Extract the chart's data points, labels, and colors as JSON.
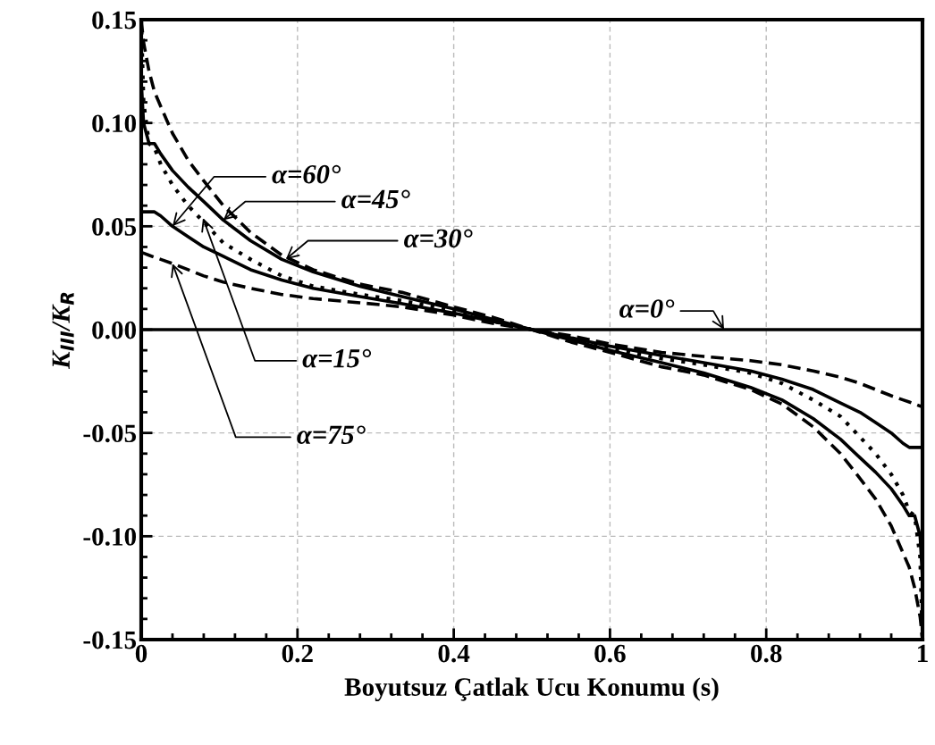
{
  "chart_data": {
    "type": "line",
    "xlabel": "Boyutsuz Çatlak Ucu Konumu (s)",
    "ylabel": "K$_{III}$/K$_{R}$",
    "x": [
      0,
      0.003,
      0.01,
      0.017,
      0.025,
      0.04,
      0.06,
      0.08,
      0.105,
      0.14,
      0.18,
      0.22,
      0.28,
      0.334,
      0.4,
      0.45,
      0.5,
      0.55,
      0.6,
      0.666,
      0.72,
      0.78,
      0.82,
      0.86,
      0.895,
      0.92,
      0.94,
      0.96,
      0.975,
      0.983,
      0.99,
      0.997,
      1
    ],
    "series": [
      {
        "color": "#000000",
        "line_style": "dashed",
        "values": [
          0.15,
          0.139,
          0.125,
          0.115,
          0.108,
          0.095,
          0.082,
          0.072,
          0.06,
          0.047,
          0.036,
          0.029,
          0.022,
          0.018,
          0.011,
          0.006,
          0,
          -0.006,
          -0.011,
          -0.018,
          -0.022,
          -0.029,
          -0.036,
          -0.047,
          -0.06,
          -0.072,
          -0.082,
          -0.095,
          -0.108,
          -0.115,
          -0.125,
          -0.139,
          -0.15
        ]
      },
      {
        "color": "#000000",
        "line_style": "solid",
        "values": [
          0.12,
          0.1,
          0.09,
          0.09,
          0.085,
          0.077,
          0.069,
          0.062,
          0.053,
          0.043,
          0.034,
          0.028,
          0.021,
          0.016,
          0.01,
          0.005,
          0,
          -0.005,
          -0.01,
          -0.016,
          -0.021,
          -0.028,
          -0.034,
          -0.043,
          -0.053,
          -0.062,
          -0.069,
          -0.077,
          -0.085,
          -0.09,
          -0.09,
          -0.1,
          -0.12
        ]
      },
      {
        "color": "#000000",
        "line_style": "dotted",
        "values": [
          0.15,
          0.11,
          0.09,
          0.088,
          0.08,
          0.07,
          0.06,
          0.052,
          0.042,
          0.034,
          0.026,
          0.021,
          0.017,
          0.014,
          0.009,
          0.004,
          0,
          -0.004,
          -0.009,
          -0.014,
          -0.017,
          -0.021,
          -0.026,
          -0.034,
          -0.042,
          -0.052,
          -0.06,
          -0.07,
          -0.08,
          -0.088,
          -0.09,
          -0.11,
          -0.15
        ]
      },
      {
        "color": "#000000",
        "line_style": "solid",
        "values": [
          0.057,
          0.057,
          0.057,
          0.057,
          0.055,
          0.05,
          0.045,
          0.04,
          0.0355,
          0.029,
          0.024,
          0.02,
          0.016,
          0.0125,
          0.008,
          0.004,
          0,
          -0.004,
          -0.008,
          -0.0125,
          -0.016,
          -0.02,
          -0.024,
          -0.029,
          -0.0355,
          -0.04,
          -0.045,
          -0.05,
          -0.055,
          -0.057,
          -0.057,
          -0.057,
          -0.057
        ]
      },
      {
        "color": "#000000",
        "line_style": "dashed",
        "values": [
          0.037,
          0.037,
          0.036,
          0.035,
          0.034,
          0.032,
          0.029,
          0.026,
          0.023,
          0.02,
          0.017,
          0.015,
          0.013,
          0.011,
          0.007,
          0.003,
          0,
          -0.003,
          -0.007,
          -0.011,
          -0.013,
          -0.015,
          -0.017,
          -0.02,
          -0.023,
          -0.026,
          -0.029,
          -0.032,
          -0.034,
          -0.035,
          -0.036,
          -0.037,
          -0.037
        ]
      },
      {
        "color": "#000000",
        "line_style": "solid",
        "values": [
          0,
          0,
          0,
          0,
          0,
          0,
          0,
          0,
          0,
          0,
          0,
          0,
          0,
          0,
          0,
          0,
          0,
          0,
          0,
          0,
          0,
          0,
          0,
          0,
          0,
          0,
          0,
          0,
          0,
          0,
          0,
          0,
          0
        ]
      }
    ],
    "annotations": [
      {
        "text": "α=60°",
        "x": 0.04,
        "y": 0.05
      },
      {
        "text": "α=45°",
        "x": 0.105,
        "y": 0.053
      },
      {
        "text": "α=30°",
        "x": 0.185,
        "y": 0.034
      },
      {
        "text": "α=15°",
        "x": 0.079,
        "y": 0.054
      },
      {
        "text": "α=75°",
        "x": 0.04,
        "y": 0.032
      },
      {
        "text": "α=0°",
        "x": 0.746,
        "y": 0
      }
    ],
    "xlim": [
      0,
      1
    ],
    "xticks": [
      0,
      0.2,
      0.4,
      0.6,
      0.8,
      1
    ],
    "ylim": [
      -0.15,
      0.15
    ],
    "yticks": [
      {
        "value": -0.15,
        "label": "-0.15"
      },
      {
        "value": -0.1,
        "label": "-0.10"
      },
      {
        "value": -0.05,
        "label": "-0.05"
      },
      {
        "value": 0,
        "label": "0.00"
      },
      {
        "value": 0.05,
        "label": "0.05"
      },
      {
        "value": 0.1,
        "label": "0.10"
      },
      {
        "value": 0.15,
        "label": "0.15"
      }
    ],
    "grid": true,
    "legend": false
  }
}
